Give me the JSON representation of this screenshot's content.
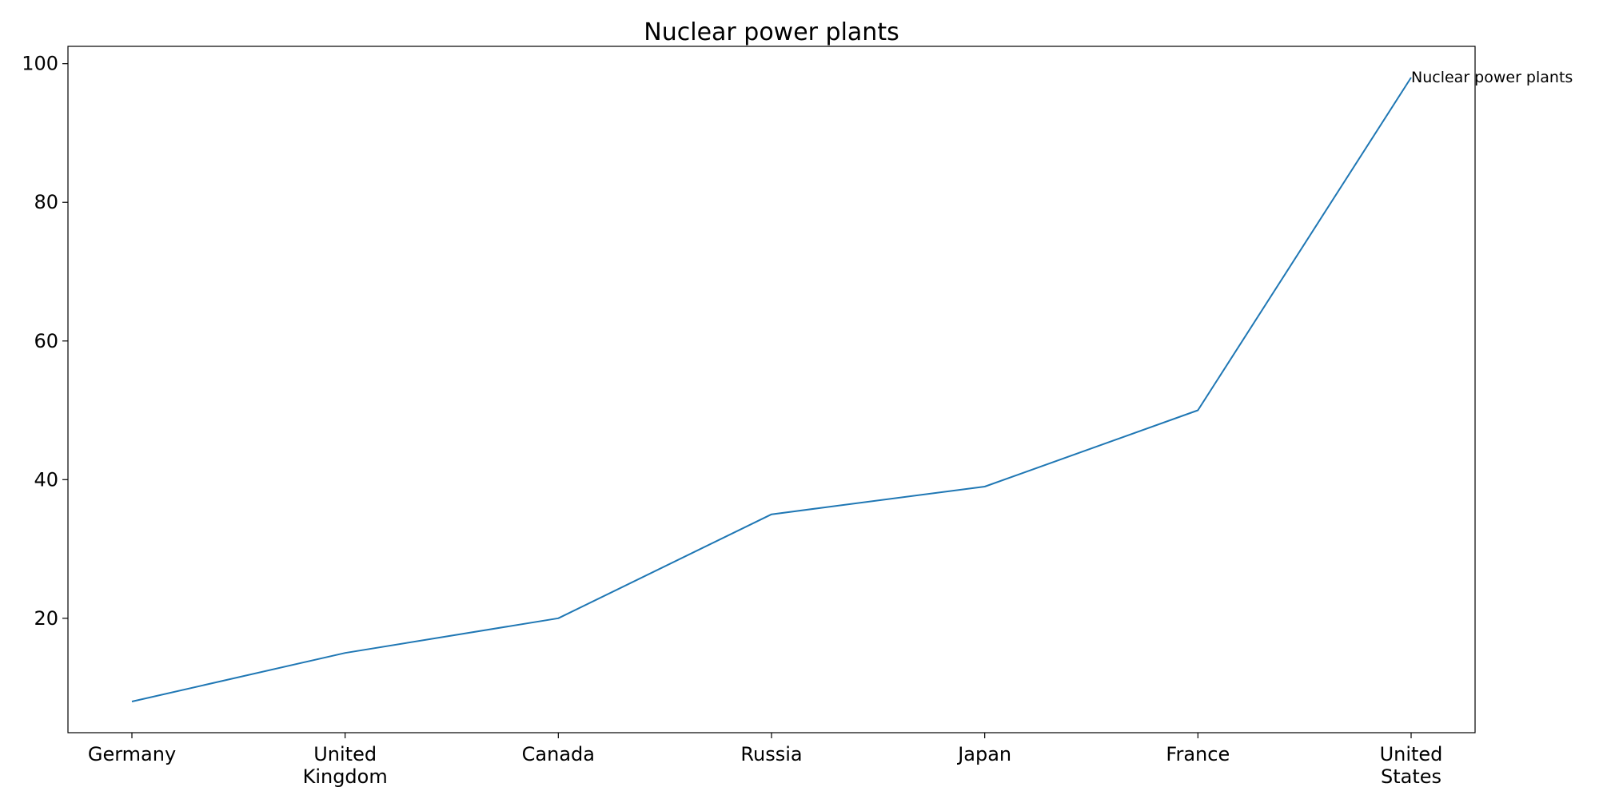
{
  "chart_data": {
    "type": "line",
    "title": "Nuclear power plants",
    "xlabel": "",
    "ylabel": "",
    "categories": [
      "Germany",
      "United Kingdom",
      "Canada",
      "Russia",
      "Japan",
      "France",
      "United States"
    ],
    "category_lines": [
      [
        "Germany"
      ],
      [
        "United",
        "Kingdom"
      ],
      [
        "Canada"
      ],
      [
        "Russia"
      ],
      [
        "Japan"
      ],
      [
        "France"
      ],
      [
        "United",
        "States"
      ]
    ],
    "series": [
      {
        "name": "Nuclear power plants",
        "values": [
          8,
          15,
          20,
          35,
          39,
          50,
          98
        ],
        "color": "#1f77b4"
      }
    ],
    "y_ticks": [
      20,
      40,
      60,
      80,
      100
    ],
    "ylim": [
      3.5,
      102.5
    ],
    "grid": false,
    "legend": "none",
    "series_label_position": "end-of-line"
  }
}
